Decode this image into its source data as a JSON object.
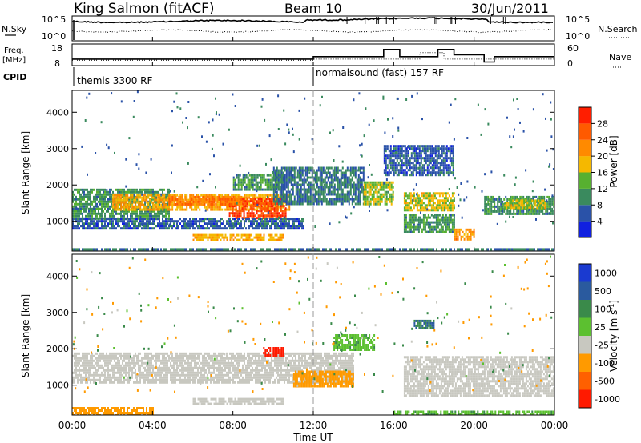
{
  "header": {
    "station": "King Salmon (fitACF)",
    "beam": "Beam 10",
    "date": "30/Jun/2011"
  },
  "noise_panel": {
    "left_label": "N.Sky",
    "left_ticks": [
      "10^5",
      "10^0"
    ],
    "right_ticks": [
      "10^5",
      "10^0"
    ],
    "right_label": "N.Search"
  },
  "freq_panel": {
    "left_label_line1": "Freq.",
    "left_label_line2": "[MHz]",
    "left_ticks": [
      "18",
      "8"
    ],
    "right_ticks": [
      "60",
      "0"
    ],
    "right_label": "Nave"
  },
  "cpid_panel": {
    "label": "CPID",
    "segments": [
      {
        "text": "themis 3300 RF",
        "start_hour": 0
      },
      {
        "text": "normalsound (fast) 157 RF",
        "start_hour": 12
      }
    ]
  },
  "time_axis": {
    "label": "Time UT",
    "ticks": [
      "00:00",
      "04:00",
      "08:00",
      "12:00",
      "16:00",
      "20:00",
      "00:00"
    ],
    "tick_hours": [
      0,
      4,
      8,
      12,
      16,
      20,
      24
    ],
    "range_hours": [
      0,
      24
    ]
  },
  "range_axis": {
    "label": "Slant Range [km]",
    "ticks": [
      "1000",
      "2000",
      "3000",
      "4000"
    ],
    "tick_values": [
      1000,
      2000,
      3000,
      4000
    ],
    "range_km": [
      180,
      4600
    ]
  },
  "power_scale": {
    "label": "Power [dB]",
    "ticks": [
      "4",
      "8",
      "12",
      "16",
      "20",
      "24",
      "28"
    ],
    "colors": [
      "#1020e0",
      "#2a52a8",
      "#3a8a5e",
      "#57b030",
      "#f5b800",
      "#ff8a00",
      "#ff5a00",
      "#ff1e00"
    ]
  },
  "velocity_scale": {
    "label": "Velocity [m s",
    "label_superscript": "-1",
    "label_close": "]",
    "ticks": [
      "1000",
      "500",
      "100",
      "25",
      "-25",
      "-100",
      "-500",
      "-1000"
    ],
    "colors": [
      "#1a3ad0",
      "#2a5a9e",
      "#3a8a4a",
      "#5cc030",
      "#c8c8c0",
      "#ff9a00",
      "#ff6000",
      "#ff1a00"
    ]
  },
  "chart_data": {
    "type": "heatmap",
    "title": "King Salmon (fitACF)",
    "subtitle": "Beam 10",
    "date": "30/Jun/2011",
    "xlabel": "Time UT",
    "ylabel": "Slant Range [km]",
    "x_range_hours": [
      0,
      24
    ],
    "y_range_km": [
      180,
      4600
    ],
    "panels": [
      {
        "name": "Power",
        "quantity_label": "Power [dB]",
        "color_range": [
          0,
          30
        ],
        "regions": [
          {
            "t0": 0.0,
            "t1": 4.8,
            "r0": 1050,
            "r1": 1900,
            "level": 10
          },
          {
            "t0": 2.0,
            "t1": 10.8,
            "r0": 1300,
            "r1": 1750,
            "level": 18
          },
          {
            "t0": 7.8,
            "t1": 10.6,
            "r0": 1100,
            "r1": 1650,
            "level": 26
          },
          {
            "t0": 4.8,
            "t1": 8.4,
            "r0": 1500,
            "r1": 1700,
            "level": 22
          },
          {
            "t0": 0.0,
            "t1": 11.5,
            "r0": 800,
            "r1": 1100,
            "level": 6
          },
          {
            "t0": 6.0,
            "t1": 10.5,
            "r0": 500,
            "r1": 650,
            "level": 18
          },
          {
            "t0": 8.0,
            "t1": 10.5,
            "r0": 1900,
            "r1": 2300,
            "level": 10
          },
          {
            "t0": 10.0,
            "t1": 14.5,
            "r0": 1500,
            "r1": 2500,
            "level": 8
          },
          {
            "t0": 14.5,
            "t1": 16.0,
            "r0": 1500,
            "r1": 2100,
            "level": 14
          },
          {
            "t0": 16.5,
            "t1": 19.0,
            "r0": 1300,
            "r1": 1800,
            "level": 16
          },
          {
            "t0": 16.5,
            "t1": 19.0,
            "r0": 700,
            "r1": 1200,
            "level": 10
          },
          {
            "t0": 19.0,
            "t1": 20.0,
            "r0": 500,
            "r1": 800,
            "level": 20
          },
          {
            "t0": 20.5,
            "t1": 24.0,
            "r0": 1200,
            "r1": 1700,
            "level": 10
          },
          {
            "t0": 21.5,
            "t1": 23.5,
            "r0": 1400,
            "r1": 1600,
            "level": 16
          },
          {
            "t0": 0.0,
            "t1": 24.0,
            "r0": 180,
            "r1": 260,
            "level": 8
          },
          {
            "t0": 15.5,
            "t1": 19.0,
            "r0": 2300,
            "r1": 3100,
            "level": 6
          }
        ]
      },
      {
        "name": "Velocity",
        "quantity_label": "Velocity [m s-1]",
        "color_range": [
          -1000,
          1000
        ],
        "regions": [
          {
            "t0": 0.0,
            "t1": 14.0,
            "r0": 1050,
            "r1": 1900,
            "value": 0
          },
          {
            "t0": 16.5,
            "t1": 24.0,
            "r0": 700,
            "r1": 1800,
            "value": 0
          },
          {
            "t0": 9.5,
            "t1": 10.5,
            "r0": 1850,
            "r1": 2050,
            "value": -1000
          },
          {
            "t0": 11.0,
            "t1": 14.0,
            "r0": 1000,
            "r1": 1400,
            "value": -150
          },
          {
            "t0": 0.0,
            "t1": 4.0,
            "r0": 200,
            "r1": 400,
            "value": -150
          },
          {
            "t0": 13.0,
            "t1": 15.0,
            "r0": 2000,
            "r1": 2400,
            "value": 50
          },
          {
            "t0": 16.0,
            "t1": 24.0,
            "r0": 180,
            "r1": 300,
            "value": 50
          },
          {
            "t0": 17.0,
            "t1": 18.0,
            "r0": 2600,
            "r1": 2800,
            "value": 300
          },
          {
            "t0": 6.0,
            "t1": 10.5,
            "r0": 500,
            "r1": 650,
            "value": 0
          }
        ]
      }
    ],
    "noise": {
      "sky_level_upper": 0.78,
      "search_level_lower": 0.4
    },
    "frequency_MHz": {
      "segments": [
        {
          "t0": 0.0,
          "t1": 12.0,
          "value": 10.5
        },
        {
          "t0": 12.0,
          "t1": 17.3,
          "value": 11.0
        },
        {
          "t0": 17.3,
          "t1": 18.5,
          "value": 14.0
        },
        {
          "t0": 18.5,
          "t1": 24.0,
          "value": 11.0
        }
      ]
    },
    "nave": {
      "segments": [
        {
          "t0": 0.0,
          "t1": 12.0,
          "value": 18
        },
        {
          "t0": 12.0,
          "t1": 15.5,
          "value": 25
        },
        {
          "t0": 15.5,
          "t1": 16.3,
          "value": 45
        },
        {
          "t0": 16.3,
          "t1": 18.2,
          "value": 25
        },
        {
          "t0": 18.2,
          "t1": 19.0,
          "value": 45
        },
        {
          "t0": 19.0,
          "t1": 20.5,
          "value": 30
        },
        {
          "t0": 20.5,
          "t1": 21.0,
          "value": 10
        },
        {
          "t0": 21.0,
          "t1": 24.0,
          "value": 25
        }
      ]
    }
  }
}
